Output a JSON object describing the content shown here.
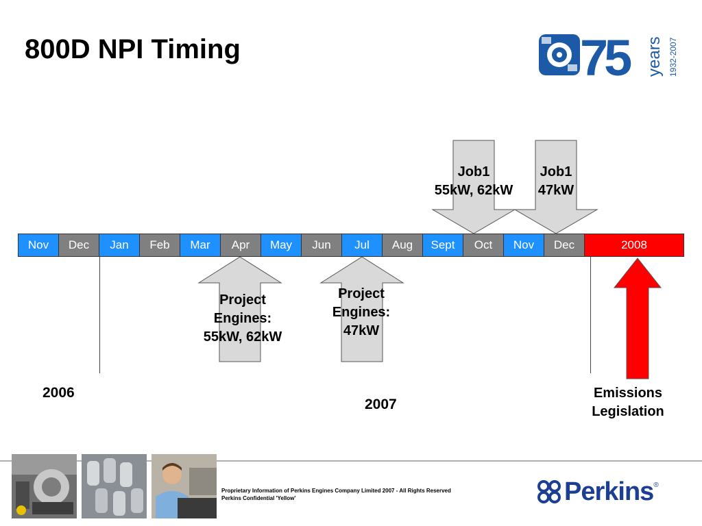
{
  "slide": {
    "title": "800D NPI Timing"
  },
  "logo75": {
    "number": "75",
    "word": "years",
    "span": "1932-2007"
  },
  "timeline": {
    "months": [
      {
        "label": "Nov",
        "fill": "blue"
      },
      {
        "label": "Dec",
        "fill": "grey"
      },
      {
        "label": "Jan",
        "fill": "blue"
      },
      {
        "label": "Feb",
        "fill": "grey"
      },
      {
        "label": "Mar",
        "fill": "blue"
      },
      {
        "label": "Apr",
        "fill": "grey"
      },
      {
        "label": "May",
        "fill": "blue"
      },
      {
        "label": "Jun",
        "fill": "grey"
      },
      {
        "label": "Jul",
        "fill": "blue"
      },
      {
        "label": "Aug",
        "fill": "grey"
      },
      {
        "label": "Sept",
        "fill": "blue"
      },
      {
        "label": "Oct",
        "fill": "grey"
      },
      {
        "label": "Nov",
        "fill": "blue"
      },
      {
        "label": "Dec",
        "fill": "grey"
      }
    ],
    "year_cell": "2008"
  },
  "labels": {
    "job1_a_line1": "Job1",
    "job1_a_line2": "55kW, 62kW",
    "job1_b_line1": "Job1",
    "job1_b_line2": "47kW",
    "project_a_line1": "Project",
    "project_a_line2": "Engines:",
    "project_a_line3": "55kW, 62kW",
    "project_b_line1": "Project",
    "project_b_line2": "Engines:",
    "project_b_line3": "47kW",
    "emissions_line1": "Emissions",
    "emissions_line2": "Legislation"
  },
  "years": {
    "y2006": "2006",
    "y2007": "2007"
  },
  "footer": {
    "line1": "Proprietary Information of Perkins Engines Company Limited 2007 - All Rights Reserved",
    "line2": "Perkins Confidential 'Yellow'",
    "brand": "Perkins",
    "reg_mark": "®"
  },
  "colors": {
    "blue_month": "#1e90ff",
    "grey_month": "#808080",
    "red_2008": "#ff0000",
    "arrow_grey": "#d9d9d9",
    "brand_blue": "#1c3f94"
  }
}
